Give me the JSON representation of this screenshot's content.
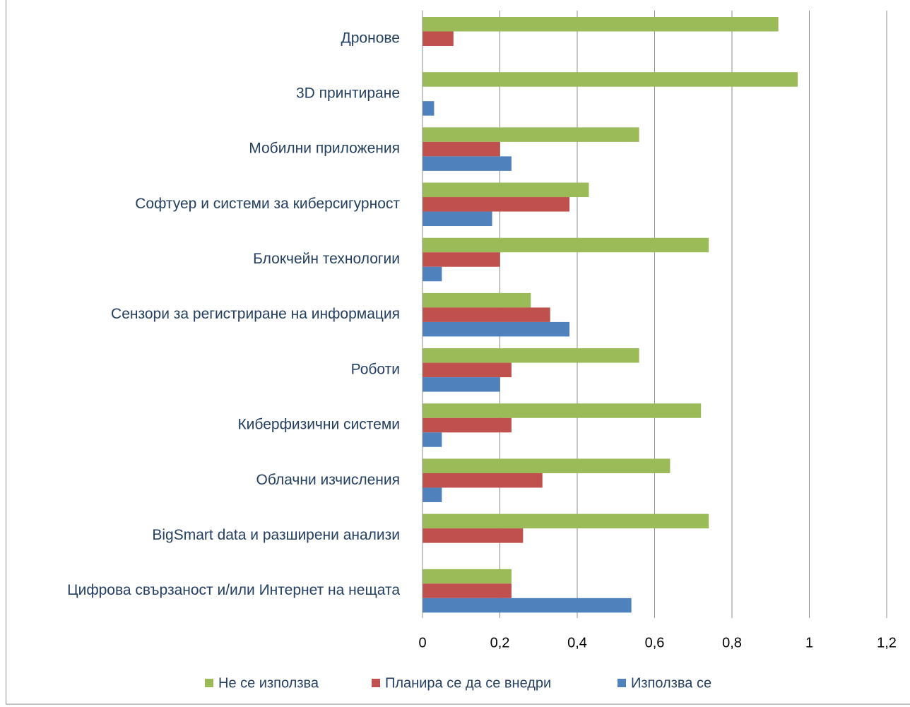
{
  "chart_data": {
    "type": "barh",
    "categories": [
      "Дронове",
      "3D принтиране",
      "Мобилни приложения",
      "Софтуер и системи за киберсигурност",
      "Блокчейн технологии",
      "Сензори за регистриране на информация",
      "Роботи",
      "Киберфизични системи",
      "Облачни изчисления",
      "BigSmart data и разширени анализи",
      "Цифрова свързаност и/или Интернет на нещата"
    ],
    "series": [
      {
        "name": "Не се използва",
        "color": "#9bbb59",
        "values": [
          0.92,
          0.97,
          0.56,
          0.43,
          0.74,
          0.28,
          0.56,
          0.72,
          0.64,
          0.74,
          0.23
        ]
      },
      {
        "name": "Планира се да се внедри",
        "color": "#c0504d",
        "values": [
          0.08,
          0,
          0.2,
          0.38,
          0.2,
          0.33,
          0.23,
          0.23,
          0.31,
          0.26,
          0.23
        ]
      },
      {
        "name": "Използва се",
        "color": "#4f81bd",
        "values": [
          0,
          0.03,
          0.23,
          0.18,
          0.05,
          0.38,
          0.2,
          0.05,
          0.05,
          0,
          0.54
        ]
      }
    ],
    "xlim": [
      0,
      1.2
    ],
    "xticks": [
      0,
      {
        "value": 0.2,
        "label": "0,2"
      },
      {
        "value": 0.4,
        "label": "0,4"
      },
      {
        "value": 0.6,
        "label": "0,6"
      },
      {
        "value": 0.8,
        "label": "0,8"
      },
      1,
      {
        "value": 1.2,
        "label": "1,2"
      }
    ],
    "grid": true,
    "legend": "bottom"
  }
}
